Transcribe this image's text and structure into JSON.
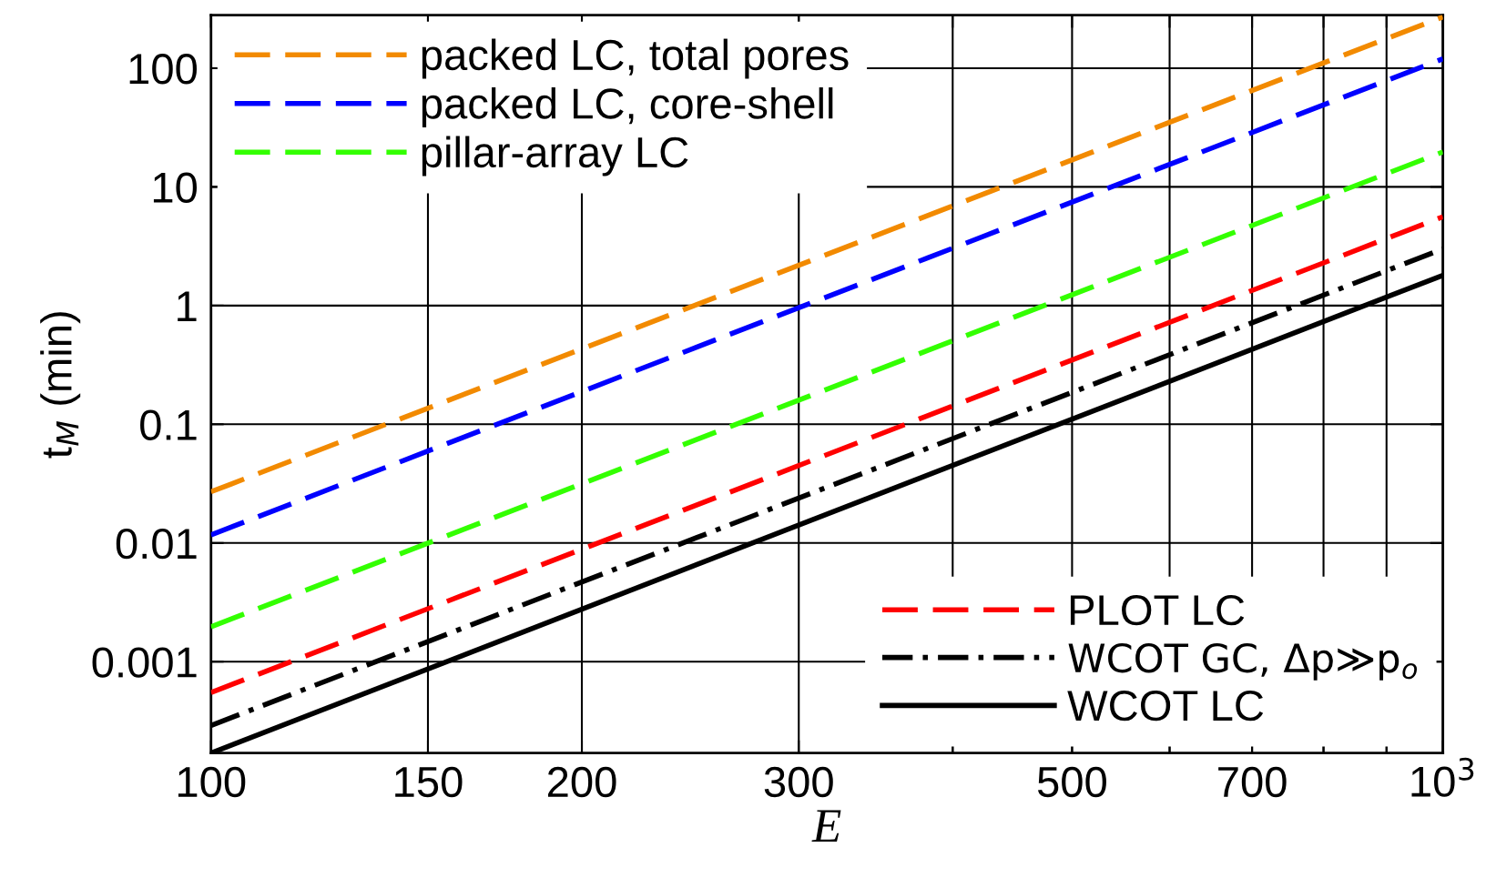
{
  "chart_data": {
    "type": "line",
    "xlabel": "E",
    "ylabel": "t$_{M}$ (min)",
    "log": "xy",
    "x": [
      100,
      1000
    ],
    "series": [
      {
        "name": "packed LC, total pores",
        "color": "#f28a00",
        "values": [
          0.027,
          270
        ],
        "line_style": "dashed"
      },
      {
        "name": "packed LC, core-shell",
        "color": "#0000ff",
        "values": [
          0.0117,
          120
        ],
        "line_style": "dashed"
      },
      {
        "name": "pillar-array LC",
        "color": "#33ff00",
        "values": [
          0.00197,
          19.7
        ],
        "line_style": "dashed"
      },
      {
        "name": "PLOT LC",
        "color": "#ff0000",
        "values": [
          0.00055,
          5.6
        ],
        "line_style": "dashed"
      },
      {
        "name": "WCOT GC, Δp≫p$_{o}$",
        "color": "#000000",
        "values": [
          0.00029,
          3.0
        ],
        "line_style": "dashdot"
      },
      {
        "name": "WCOT LC",
        "color": "#000000",
        "values": [
          0.00017,
          1.8
        ],
        "line_style": "solid"
      }
    ],
    "xlim": [
      100,
      1000
    ],
    "ylim": [
      0.00017,
      280
    ],
    "xticks": [
      100,
      150,
      200,
      300,
      {
        "value": 400,
        "label": null
      },
      500,
      {
        "value": 600,
        "label": null
      },
      700,
      {
        "value": 800,
        "label": null
      },
      {
        "value": 900,
        "label": null
      },
      {
        "value": 1000,
        "label": "10$^{3}$"
      }
    ],
    "yticks": [
      0.001,
      0.01,
      0.1,
      1,
      10,
      100
    ],
    "grid": true,
    "legend": [
      "top left",
      "bottom right"
    ],
    "marker": "none"
  }
}
